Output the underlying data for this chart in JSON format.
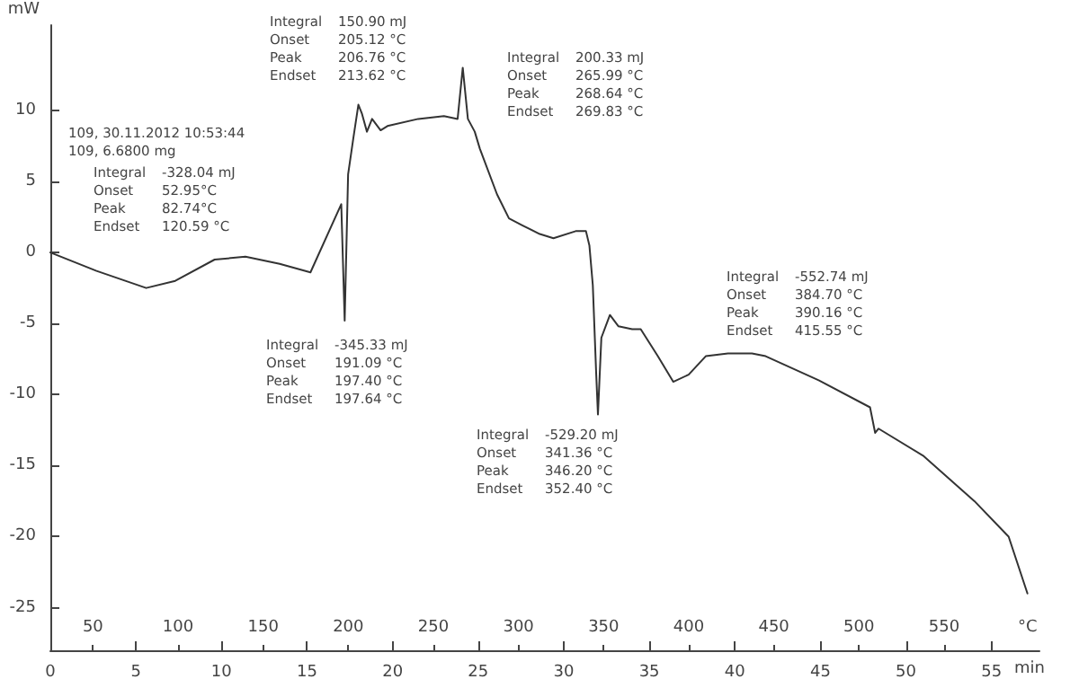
{
  "chart_data": {
    "type": "line",
    "ylabel": "mW",
    "xlabel": "min",
    "x2label": "°C",
    "xlim": [
      0,
      57.8
    ],
    "xticks": [
      0,
      5,
      10,
      15,
      20,
      25,
      30,
      35,
      40,
      45,
      50,
      55
    ],
    "x2lim": [
      25,
      606
    ],
    "x2ticks": [
      50,
      100,
      150,
      200,
      250,
      300,
      350,
      400,
      450,
      500,
      550
    ],
    "ylim": [
      -28,
      16
    ],
    "yticks": [
      -25,
      -20,
      -15,
      -10,
      -5,
      0,
      5,
      10
    ],
    "grid": false,
    "marker": "none",
    "line_style": "solid",
    "series": [
      {
        "color": "#333333",
        "x": [
          0,
          2.7,
          5.6,
          7.3,
          9.6,
          11.4,
          13.4,
          15.2,
          17.0,
          17.2,
          17.4,
          17.7,
          18.0,
          18.2,
          18.5,
          18.8,
          19.3,
          19.7,
          21.5,
          23.0,
          23.8,
          24.1,
          24.4,
          24.8,
          25.1,
          26.1,
          26.8,
          27.6,
          28.6,
          29.4,
          30.7,
          31.3,
          31.5,
          31.7,
          31.9,
          32.0,
          32.2,
          32.7,
          33.2,
          34.0,
          34.5,
          35.5,
          36.4,
          37.3,
          38.3,
          39.6,
          41.0,
          41.8,
          44.9,
          47.9,
          48.2,
          48.4,
          51.0,
          54.0,
          56.0,
          57.1
        ],
        "values": [
          0,
          -1.3,
          -2.5,
          -2.0,
          -0.5,
          -0.3,
          -0.8,
          -1.4,
          3.4,
          -4.8,
          5.5,
          8.0,
          10.4,
          9.8,
          8.5,
          9.4,
          8.6,
          8.9,
          9.4,
          9.6,
          9.4,
          13.0,
          9.4,
          8.5,
          7.3,
          4.1,
          2.4,
          1.9,
          1.3,
          1.0,
          1.5,
          1.5,
          0.5,
          -2.3,
          -8.6,
          -11.4,
          -6.0,
          -4.4,
          -5.2,
          -5.4,
          -5.4,
          -7.3,
          -9.1,
          -8.6,
          -7.3,
          -7.1,
          -7.1,
          -7.3,
          -9.0,
          -10.9,
          -12.7,
          -12.4,
          -14.3,
          -17.5,
          -20.0,
          -24.0
        ]
      }
    ],
    "annotations": [
      "109, 30.11.2012 10:53:44\n109, 6.6800 mg",
      "Integral\t-328.04 mJ\nOnset\t52.95°C\nPeak\t82.74°C\nEndset\t120.59 °C",
      "Integral\t150.90 mJ\nOnset\t205.12 °C\nPeak\t206.76 °C\nEndset\t213.62 °C",
      "Integral\t200.33 mJ\nOnset\t265.99 °C\nPeak\t268.64 °C\nEndset\t269.83 °C",
      "Integral\t-345.33 mJ\nOnset\t191.09 °C\nPeak\t197.40 °C\nEndset\t197.64 °C",
      "Integral\t-529.20 mJ\nOnset\t341.36 °C\nPeak\t346.20 °C\nEndset\t352.40 °C",
      "Integral\t-552.74 mJ\nOnset\t384.70 °C\nPeak\t390.16 °C\nEndset\t415.55 °C"
    ]
  }
}
